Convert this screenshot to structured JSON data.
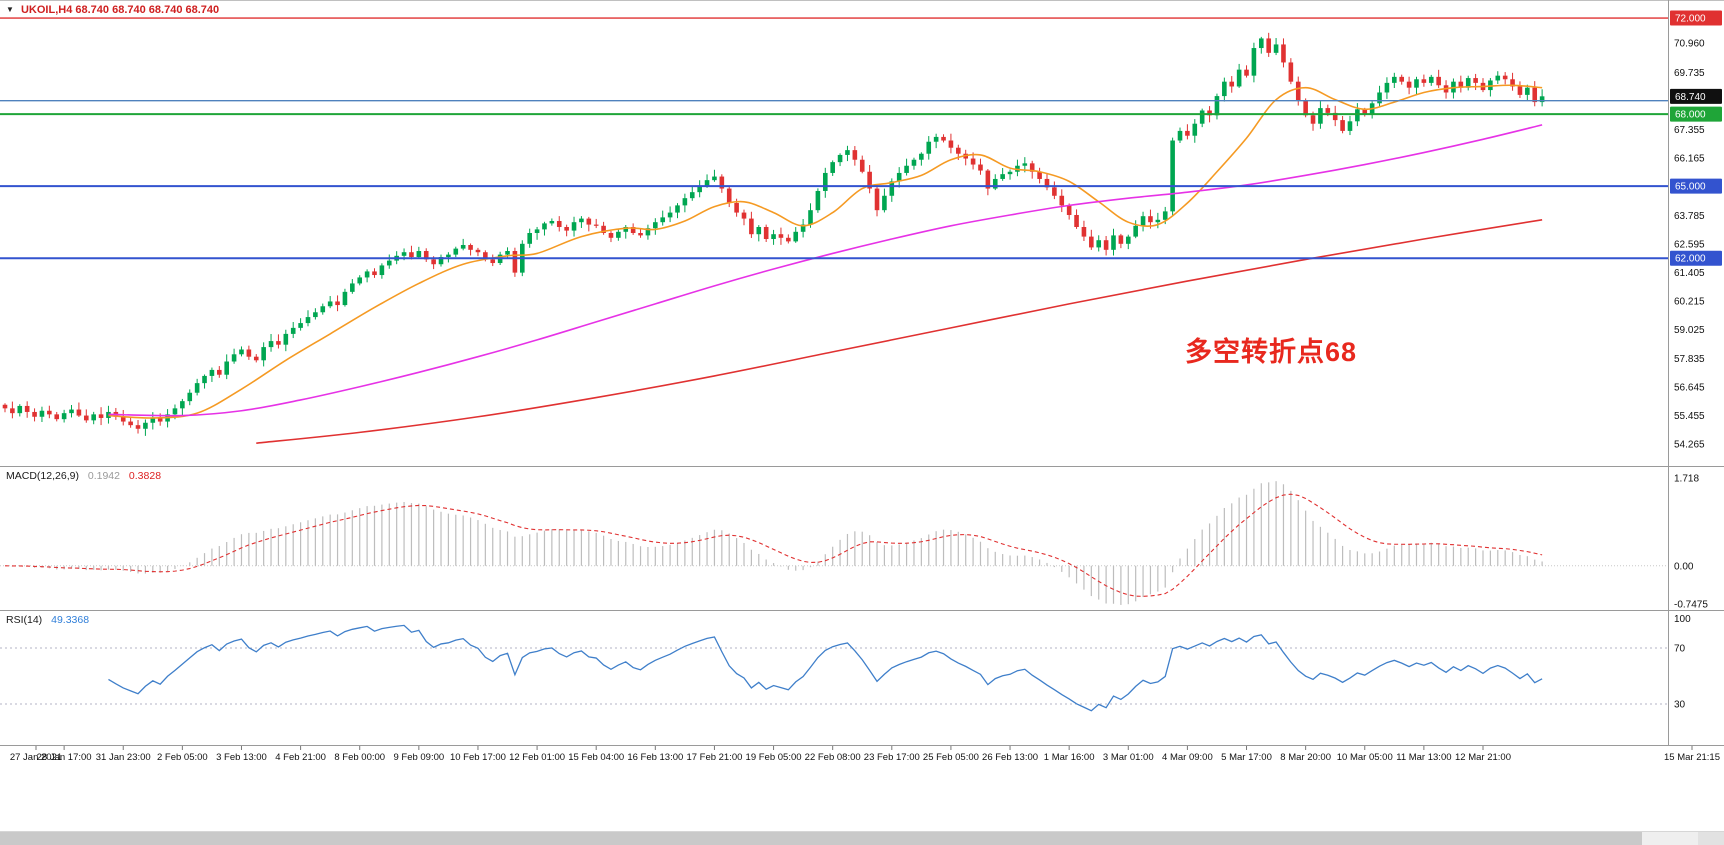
{
  "window": {
    "symbol_label": "UKOIL,H4",
    "ohlc_label": "68.740 68.740 68.740 68.740",
    "dropdown_glyph": "▼"
  },
  "annotation": {
    "text": "多空转折点68",
    "color": "#e8281e"
  },
  "indicators": {
    "macd": {
      "name": "MACD(12,26,9)",
      "value_main": "0.1942",
      "value_signal": "0.3828"
    },
    "rsi": {
      "name": "RSI(14)",
      "value": "49.3368"
    }
  },
  "chart_data": {
    "type": "candlestick",
    "symbol": "UKOIL",
    "timeframe": "H4",
    "up_color": "#00a651",
    "down_color": "#e03232",
    "macd_hist_color": "#bdbdbd",
    "macd_signal_color": "#e03131",
    "rsi_color": "#3f7fca",
    "ylim": [
      53.35,
      72.75
    ],
    "macd_ylim": [
      -0.865,
      1.933
    ],
    "rsi_levels": [
      70,
      30
    ],
    "first_open": 55.9,
    "closes": [
      55.75,
      55.55,
      55.85,
      55.6,
      55.4,
      55.65,
      55.5,
      55.3,
      55.55,
      55.7,
      55.45,
      55.25,
      55.5,
      55.35,
      55.6,
      55.4,
      55.2,
      55.05,
      54.9,
      55.15,
      55.35,
      55.2,
      55.5,
      55.75,
      56.05,
      56.4,
      56.8,
      57.1,
      57.35,
      57.15,
      57.7,
      58.0,
      58.2,
      57.9,
      57.75,
      58.3,
      58.55,
      58.4,
      58.85,
      59.1,
      59.3,
      59.55,
      59.75,
      60.0,
      60.2,
      60.05,
      60.6,
      60.95,
      61.2,
      61.45,
      61.3,
      61.7,
      61.9,
      62.1,
      62.25,
      62.05,
      62.3,
      61.95,
      61.75,
      62.05,
      62.15,
      62.4,
      62.55,
      62.35,
      62.25,
      61.95,
      61.8,
      62.15,
      62.3,
      61.4,
      62.6,
      63.05,
      63.2,
      63.45,
      63.55,
      63.3,
      63.15,
      63.5,
      63.65,
      63.4,
      63.35,
      63.05,
      62.85,
      63.1,
      63.3,
      63.05,
      62.95,
      63.25,
      63.5,
      63.7,
      63.9,
      64.2,
      64.5,
      64.75,
      65.0,
      65.25,
      65.4,
      64.9,
      64.3,
      63.9,
      63.65,
      63.0,
      63.3,
      62.8,
      63.0,
      62.85,
      62.7,
      63.1,
      63.4,
      64.0,
      64.8,
      65.55,
      66.0,
      66.3,
      66.5,
      66.1,
      65.6,
      64.9,
      64.0,
      64.6,
      65.2,
      65.55,
      65.85,
      66.1,
      66.35,
      66.85,
      67.05,
      66.9,
      66.6,
      66.35,
      66.15,
      65.9,
      65.65,
      64.9,
      65.3,
      65.5,
      65.6,
      65.85,
      65.95,
      65.6,
      65.3,
      64.95,
      64.6,
      64.2,
      63.8,
      63.3,
      62.9,
      62.45,
      62.75,
      62.35,
      62.95,
      62.6,
      62.9,
      63.35,
      63.75,
      63.5,
      63.6,
      63.95,
      66.9,
      67.3,
      67.1,
      67.6,
      68.15,
      67.95,
      68.75,
      69.35,
      69.15,
      69.85,
      69.6,
      70.75,
      71.15,
      70.55,
      70.9,
      70.15,
      69.35,
      68.55,
      67.95,
      67.6,
      68.25,
      68.05,
      67.75,
      67.3,
      67.7,
      68.2,
      68.0,
      68.45,
      68.9,
      69.3,
      69.55,
      69.35,
      69.1,
      69.45,
      69.3,
      69.55,
      69.2,
      68.9,
      69.35,
      69.1,
      69.5,
      69.3,
      69.0,
      69.4,
      69.6,
      69.45,
      69.15,
      68.8,
      69.1,
      68.5,
      68.74
    ],
    "ma_lines": [
      {
        "name": "fast-ma",
        "color": "#f59a23",
        "points": [
          [
            14,
            55.45
          ],
          [
            20,
            55.35
          ],
          [
            26,
            55.55
          ],
          [
            32,
            56.55
          ],
          [
            38,
            57.75
          ],
          [
            44,
            58.85
          ],
          [
            50,
            59.95
          ],
          [
            56,
            60.95
          ],
          [
            62,
            61.75
          ],
          [
            68,
            62.1
          ],
          [
            72,
            62.2
          ],
          [
            78,
            62.9
          ],
          [
            84,
            63.25
          ],
          [
            88,
            63.2
          ],
          [
            92,
            63.55
          ],
          [
            96,
            64.15
          ],
          [
            100,
            64.35
          ],
          [
            104,
            63.9
          ],
          [
            108,
            63.35
          ],
          [
            112,
            63.9
          ],
          [
            116,
            64.9
          ],
          [
            120,
            65.15
          ],
          [
            124,
            65.45
          ],
          [
            128,
            66.1
          ],
          [
            132,
            66.3
          ],
          [
            136,
            65.75
          ],
          [
            140,
            65.6
          ],
          [
            144,
            65.2
          ],
          [
            148,
            64.35
          ],
          [
            152,
            63.5
          ],
          [
            156,
            63.4
          ],
          [
            160,
            64.3
          ],
          [
            164,
            65.6
          ],
          [
            168,
            67.0
          ],
          [
            172,
            68.6
          ],
          [
            176,
            69.1
          ],
          [
            180,
            68.6
          ],
          [
            184,
            68.2
          ],
          [
            188,
            68.5
          ],
          [
            192,
            68.9
          ],
          [
            196,
            69.1
          ],
          [
            200,
            69.15
          ],
          [
            204,
            69.2
          ],
          [
            208,
            69.1
          ]
        ]
      },
      {
        "name": "mid-ma",
        "color": "#e632e6",
        "points": [
          [
            14,
            55.5
          ],
          [
            24,
            55.45
          ],
          [
            32,
            55.65
          ],
          [
            40,
            56.1
          ],
          [
            48,
            56.65
          ],
          [
            56,
            57.25
          ],
          [
            64,
            57.9
          ],
          [
            72,
            58.6
          ],
          [
            80,
            59.35
          ],
          [
            88,
            60.1
          ],
          [
            96,
            60.85
          ],
          [
            104,
            61.55
          ],
          [
            112,
            62.2
          ],
          [
            120,
            62.8
          ],
          [
            128,
            63.35
          ],
          [
            136,
            63.8
          ],
          [
            144,
            64.2
          ],
          [
            152,
            64.5
          ],
          [
            160,
            64.75
          ],
          [
            168,
            65.05
          ],
          [
            176,
            65.45
          ],
          [
            184,
            65.9
          ],
          [
            192,
            66.4
          ],
          [
            200,
            66.95
          ],
          [
            208,
            67.55
          ]
        ]
      },
      {
        "name": "slow-ma",
        "color": "#e03131",
        "points": [
          [
            34,
            54.3
          ],
          [
            48,
            54.75
          ],
          [
            64,
            55.4
          ],
          [
            80,
            56.2
          ],
          [
            96,
            57.1
          ],
          [
            112,
            58.1
          ],
          [
            128,
            59.1
          ],
          [
            144,
            60.1
          ],
          [
            160,
            61.05
          ],
          [
            176,
            61.95
          ],
          [
            192,
            62.8
          ],
          [
            208,
            63.6
          ]
        ]
      }
    ],
    "hlines": [
      {
        "price": 72.0,
        "color": "#e03131",
        "width": 1.4
      },
      {
        "price": 68.56,
        "color": "#4f81bd",
        "width": 1.4
      },
      {
        "price": 68.0,
        "color": "#1fa538",
        "width": 2
      },
      {
        "price": 65.0,
        "color": "#3353cf",
        "width": 2
      },
      {
        "price": 62.0,
        "color": "#3353cf",
        "width": 2
      }
    ],
    "price_axis": {
      "ticks": [
        70.96,
        69.735,
        67.355,
        66.165,
        63.785,
        62.595,
        61.405,
        60.215,
        59.025,
        57.835,
        56.645,
        55.455,
        54.265
      ],
      "badges": [
        {
          "price": 72.0,
          "bg": "#e03131"
        },
        {
          "price": 68.74,
          "bg": "#101010"
        },
        {
          "price": 68.0,
          "bg": "#1fa538"
        },
        {
          "price": 65.0,
          "bg": "#3353cf"
        },
        {
          "price": 62.0,
          "bg": "#3353cf"
        }
      ]
    },
    "macd_axis": {
      "ticks": [
        {
          "label": "1.718",
          "value": 1.718
        },
        {
          "label": "0.00",
          "value": 0
        },
        {
          "label": "-0.7475",
          "value": -0.7475
        }
      ]
    },
    "rsi_axis": {
      "ticks": [
        {
          "label": "100",
          "value": 100
        },
        {
          "label": "70",
          "value": 70
        },
        {
          "label": "30",
          "value": 30
        }
      ]
    },
    "time_labels": [
      "27 Jan 2021",
      "28 Jan 17:00",
      "31 Jan 23:00",
      "2 Feb 05:00",
      "3 Feb 13:00",
      "4 Feb 21:00",
      "8 Feb 00:00",
      "9 Feb 09:00",
      "10 Feb 17:00",
      "12 Feb 01:00",
      "15 Feb 04:00",
      "16 Feb 13:00",
      "17 Feb 21:00",
      "19 Feb 05:00",
      "22 Feb 08:00",
      "23 Feb 17:00",
      "25 Feb 05:00",
      "26 Feb 13:00",
      "1 Mar 16:00",
      "3 Mar 01:00",
      "4 Mar 09:00",
      "5 Mar 17:00",
      "8 Mar 20:00",
      "10 Mar 05:00",
      "11 Mar 13:00",
      "12 Mar 21:00",
      "15 Mar 21:15"
    ]
  }
}
